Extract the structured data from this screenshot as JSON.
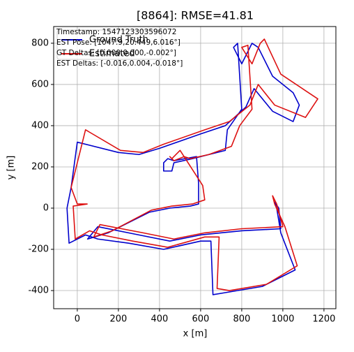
{
  "chart_data": {
    "type": "line",
    "title": "[8864]: RMSE=41.81",
    "xlabel": "x [m]",
    "ylabel": "y [m]",
    "annotations": [
      "Timestamp: 1547123303596072",
      "EST Pose: [1047.9,20.449,6.016°]",
      "GT Deltas: [0.000,0.000,-0.002°]",
      "EST Deltas: [-0.016,0.004,-0.018°]"
    ],
    "xlim": [
      -115,
      1258
    ],
    "ylim": [
      -488,
      881
    ],
    "xticks": [
      0,
      200,
      400,
      600,
      800,
      1000,
      1200
    ],
    "yticks": [
      -400,
      -200,
      0,
      200,
      400,
      600,
      800
    ],
    "grid": true,
    "legend": "upper left",
    "series": [
      {
        "name": "Ground Truth",
        "color": "#0000cc",
        "x": [
          -50,
          -40,
          40,
          100,
          250,
          420,
          600,
          650,
          660,
          720,
          900,
          1060,
          990,
          970,
          960,
          980,
          990,
          800,
          600,
          450,
          300,
          100,
          50,
          150,
          350,
          450,
          550,
          590,
          590,
          580,
          470,
          440,
          420,
          420,
          460,
          470,
          560,
          720,
          730,
          800,
          780,
          760,
          800,
          850,
          880,
          950,
          1050,
          1080,
          1050,
          950,
          860,
          820,
          720,
          600,
          400,
          300,
          200,
          0,
          -30,
          -50
        ],
        "values": [
          0,
          -170,
          -130,
          -150,
          -170,
          -200,
          -160,
          -160,
          -420,
          -410,
          -380,
          -300,
          -120,
          0,
          30,
          0,
          -100,
          -110,
          -130,
          -160,
          -130,
          -90,
          -150,
          -120,
          -20,
          0,
          10,
          20,
          120,
          250,
          230,
          240,
          220,
          180,
          180,
          220,
          240,
          280,
          380,
          480,
          800,
          780,
          700,
          800,
          780,
          640,
          560,
          500,
          420,
          470,
          580,
          490,
          400,
          360,
          290,
          260,
          270,
          320,
          100,
          0
        ]
      },
      {
        "name": "Estimated",
        "color": "#dd1111",
        "x": [
          50,
          -20,
          -10,
          60,
          120,
          270,
          440,
          620,
          690,
          680,
          740,
          920,
          1070,
          1010,
          960,
          950,
          970,
          1000,
          800,
          620,
          470,
          320,
          110,
          80,
          170,
          360,
          460,
          560,
          620,
          610,
          500,
          460,
          450,
          470,
          520,
          550,
          640,
          750,
          790,
          850,
          830,
          800,
          850,
          890,
          910,
          990,
          1110,
          1170,
          1110,
          960,
          880,
          840,
          740,
          620,
          420,
          320,
          210,
          40,
          -30,
          0,
          50
        ],
        "values": [
          20,
          10,
          -150,
          -110,
          -130,
          -160,
          -190,
          -140,
          -140,
          -390,
          -400,
          -370,
          -280,
          -90,
          20,
          60,
          20,
          -90,
          -100,
          -120,
          -150,
          -120,
          -80,
          -140,
          -110,
          -10,
          10,
          20,
          40,
          110,
          280,
          240,
          250,
          230,
          250,
          240,
          260,
          300,
          400,
          480,
          790,
          780,
          700,
          800,
          820,
          650,
          570,
          530,
          440,
          500,
          600,
          500,
          420,
          380,
          310,
          270,
          280,
          380,
          100,
          20,
          20
        ]
      }
    ]
  }
}
